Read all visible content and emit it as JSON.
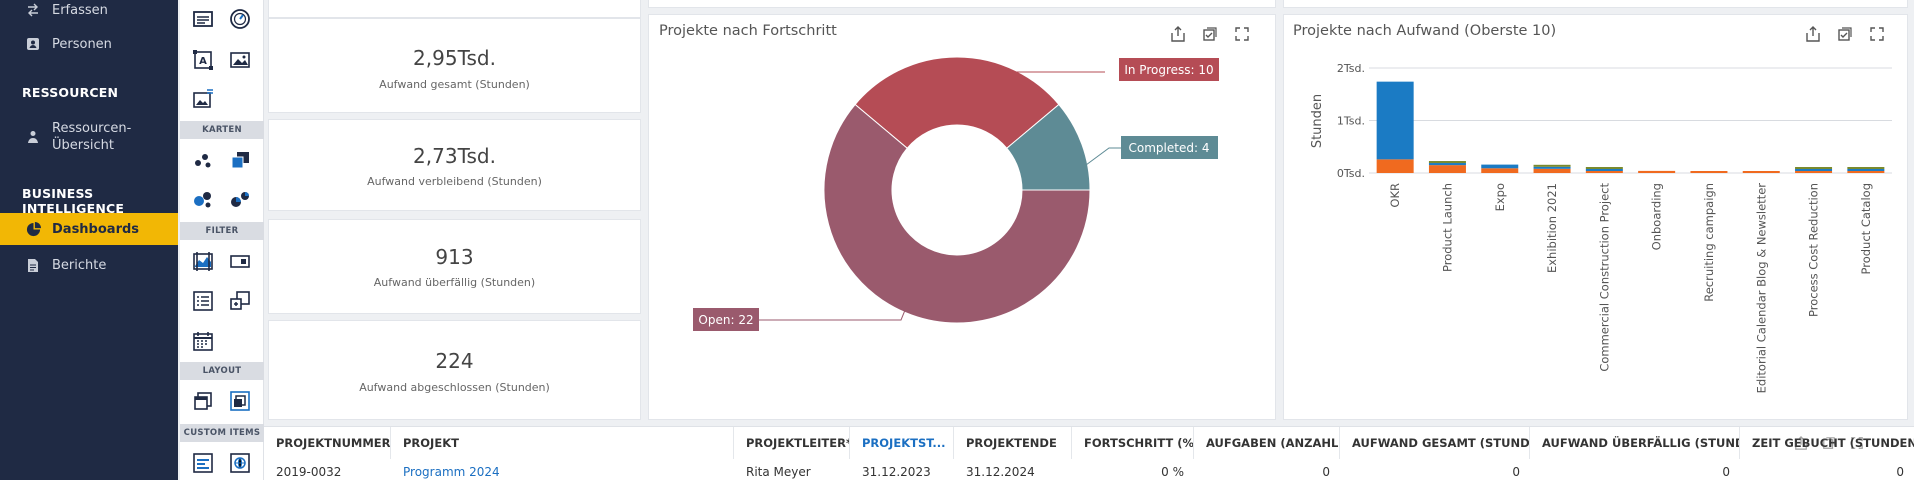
{
  "sidebar": {
    "items_top": [
      {
        "label": "Erfassen",
        "icon": "transfer-icon"
      },
      {
        "label": "Personen",
        "icon": "person-card-icon"
      }
    ],
    "section_resources": "RESSOURCEN",
    "resources_item": {
      "label_line1": "Ressourcen-",
      "label_line2": "Übersicht",
      "icon": "person-icon"
    },
    "section_bi": "BUSINESS INTELLIGENCE",
    "dashboards_label": "Dashboards",
    "berichte_label": "Berichte",
    "accent": "#f2b705"
  },
  "toolbox": {
    "karten": "KARTEN",
    "filter": "FILTER",
    "layout": "LAYOUT",
    "custom": "CUSTOM ITEMS"
  },
  "kpis": [
    {
      "value": "2,95Tsd.",
      "label": "Aufwand gesamt (Stunden)"
    },
    {
      "value": "2,73Tsd.",
      "label": "Aufwand verbleibend (Stunden)"
    },
    {
      "value": "913",
      "label": "Aufwand überfällig (Stunden)"
    },
    {
      "value": "224",
      "label": "Aufwand abgeschlossen (Stunden)"
    }
  ],
  "donut": {
    "title": "Projekte nach Fortschritt",
    "labels": {
      "in_progress": "In Progress: 10",
      "completed": "Completed: 4",
      "open": "Open: 22"
    }
  },
  "bar": {
    "title": "Projekte nach Aufwand (Oberste 10)",
    "ylabel": "Stunden",
    "yticks": [
      "2Tsd.",
      "1Tsd.",
      "0Tsd."
    ]
  },
  "chart_data": [
    {
      "type": "pie",
      "title": "Projekte nach Fortschritt",
      "categories": [
        "In Progress",
        "Completed",
        "Open"
      ],
      "values": [
        10,
        4,
        22
      ],
      "colors": [
        "#b54c55",
        "#5e8b95",
        "#9a5a6d"
      ]
    },
    {
      "type": "bar",
      "title": "Projekte nach Aufwand (Oberste 10)",
      "ylabel": "Stunden",
      "ylim": [
        0,
        2000
      ],
      "categories": [
        "OKR",
        "Product Launch",
        "Expo",
        "Exhibition 2021",
        "Commercial Construction Project",
        "Onboarding",
        "Recruiting campaign",
        "Editorial Calendar Blog & Newsletter",
        "Process Cost Reduction",
        "Product Catalog"
      ],
      "series": [
        {
          "values": [
            1480,
            40,
            70,
            20,
            30,
            0,
            0,
            0,
            15,
            30
          ],
          "color": "#1b7bc4"
        },
        {
          "values": [
            260,
            150,
            90,
            80,
            20,
            40,
            30,
            35,
            25,
            10
          ],
          "color": "#f06a1f"
        },
        {
          "values": [
            0,
            30,
            0,
            15,
            10,
            0,
            0,
            0,
            10,
            5
          ],
          "color": "#7a8a2e"
        }
      ]
    }
  ],
  "table": {
    "headers": [
      "PROJEKTNUMMER",
      "PROJEKT",
      "PROJEKTLEITER*...",
      "PROJEKTST...",
      "PROJEKTENDE",
      "FORTSCHRITT (%)",
      "AUFGABEN (ANZAHL)",
      "AUFWAND GESAMT (STUNDEN)",
      "AUFWAND ÜBERFÄLLIG (STUNDE...",
      "ZEIT GEBUCHT (STUNDEN)"
    ],
    "row": [
      "2019-0032",
      "Programm 2024",
      "Rita Meyer",
      "31.12.2023",
      "31.12.2024",
      "0 %",
      "0",
      "0",
      "0",
      "0"
    ],
    "sort_arrow": "↓"
  }
}
